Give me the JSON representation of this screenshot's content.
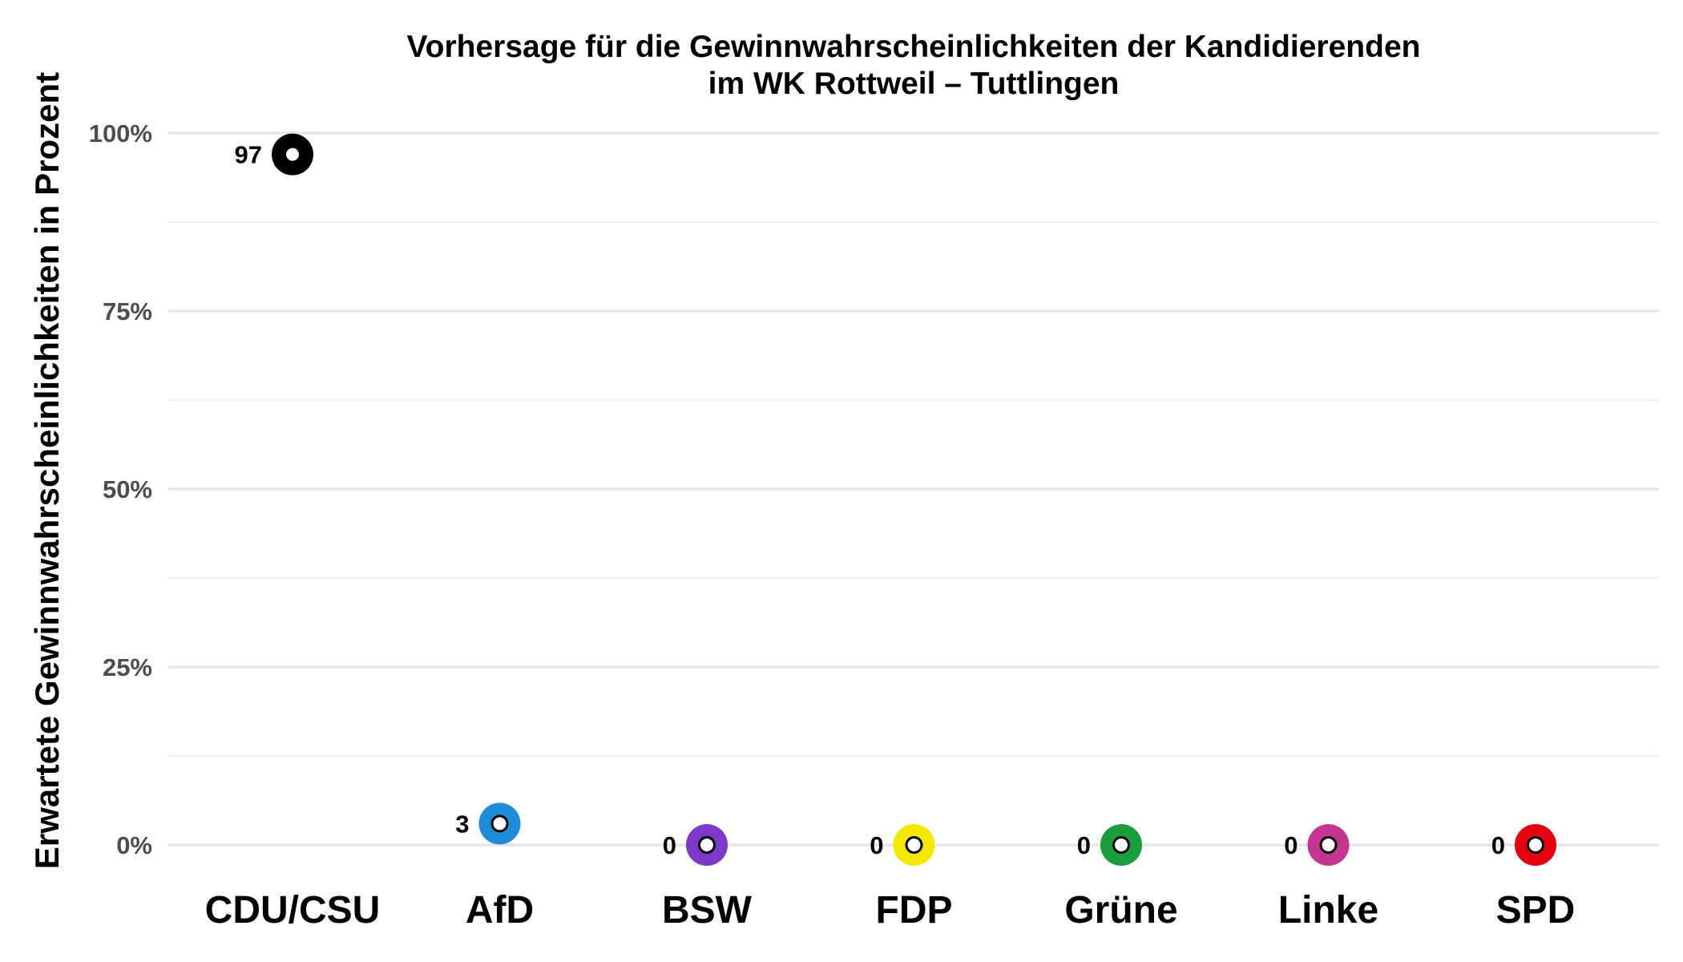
{
  "chart_data": {
    "type": "scatter",
    "title": "Vorhersage für die Gewinnwahrscheinlichkeiten der Kandidierenden",
    "subtitle": "im WK Rottweil – Tuttlingen",
    "xlabel": "",
    "ylabel": "Erwartete Gewinnwahrscheinlichkeiten in Prozent",
    "ylim": [
      0,
      100
    ],
    "yticks": [
      0,
      25,
      50,
      75,
      100
    ],
    "ytick_labels": [
      "0%",
      "25%",
      "50%",
      "75%",
      "100%"
    ],
    "grid": true,
    "legend": "none",
    "categories": [
      "CDU/CSU",
      "AfD",
      "BSW",
      "FDP",
      "Grüne",
      "Linke",
      "SPD"
    ],
    "values": [
      97,
      3,
      0,
      0,
      0,
      0,
      0
    ],
    "data_labels": [
      "97",
      "3",
      "0",
      "0",
      "0",
      "0",
      "0"
    ],
    "colors": [
      "#000000",
      "#1f8bd9",
      "#7b38c9",
      "#f5e800",
      "#1a9e3c",
      "#c4358f",
      "#e3000f"
    ]
  }
}
